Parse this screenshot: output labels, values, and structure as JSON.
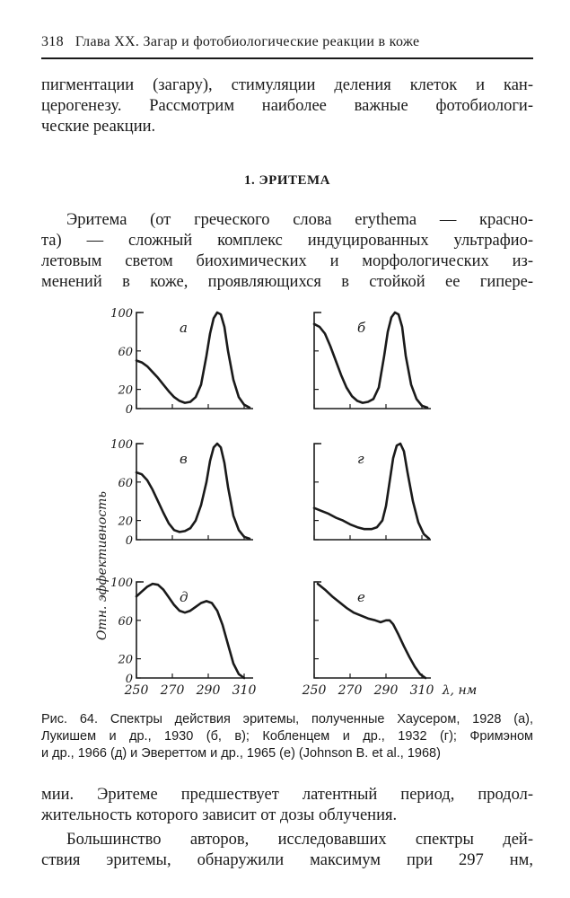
{
  "header": {
    "page_number": "318",
    "running_title": "Глава XX. Загар и фотобиологические реакции в коже"
  },
  "para1": [
    "пигментации (загару), стимуляции деления клеток и кан-",
    "церогенезу. Рассмотрим наиболее важные фотобиологи-",
    "ческие реакции."
  ],
  "section_title": "1. ЭРИТЕМА",
  "para2": [
    "Эритема (от греческого слова erythema — красно-",
    "та) — сложный комплекс индуцированных ультрафио-",
    "летовым светом биохимических и морфологических из-",
    "менений в коже, проявляющихся в стойкой ее гипере-"
  ],
  "chart_data": {
    "type": "line",
    "ylabel": "Отн. эффективность",
    "xlabel": "λ, нм",
    "x_ticks": [
      "250",
      "270",
      "290",
      "310"
    ],
    "y_ticks": [
      "0",
      "20",
      "60",
      "100"
    ],
    "xlim": [
      250,
      315
    ],
    "ylim": [
      0,
      100
    ],
    "panels": [
      {
        "label": "а",
        "x": [
          250,
          253,
          256,
          259,
          262,
          265,
          268,
          271,
          274,
          277,
          280,
          283,
          286,
          289,
          291,
          293,
          295,
          297,
          299,
          301,
          304,
          307,
          310,
          313
        ],
        "y": [
          50,
          48,
          44,
          38,
          32,
          25,
          18,
          12,
          8,
          6,
          7,
          12,
          25,
          55,
          78,
          94,
          100,
          98,
          85,
          60,
          30,
          12,
          4,
          1
        ]
      },
      {
        "label": "б",
        "x": [
          250,
          253,
          256,
          259,
          262,
          265,
          268,
          271,
          274,
          277,
          280,
          283,
          286,
          289,
          291,
          293,
          295,
          297,
          299,
          301,
          304,
          307,
          310,
          313
        ],
        "y": [
          88,
          85,
          78,
          65,
          50,
          35,
          22,
          13,
          8,
          6,
          7,
          10,
          22,
          55,
          80,
          95,
          100,
          98,
          85,
          55,
          25,
          10,
          3,
          1
        ]
      },
      {
        "label": "в",
        "x": [
          250,
          253,
          256,
          259,
          262,
          265,
          268,
          271,
          274,
          277,
          280,
          283,
          286,
          289,
          291,
          293,
          295,
          297,
          299,
          301,
          304,
          307,
          310,
          313
        ],
        "y": [
          70,
          68,
          62,
          52,
          40,
          28,
          17,
          10,
          8,
          9,
          12,
          20,
          36,
          60,
          82,
          96,
          100,
          96,
          80,
          55,
          25,
          10,
          3,
          1
        ]
      },
      {
        "label": "г",
        "x": [
          250,
          254,
          258,
          262,
          266,
          270,
          274,
          278,
          282,
          285,
          288,
          290,
          292,
          294,
          296,
          298,
          300,
          302,
          305,
          308,
          311,
          314
        ],
        "y": [
          33,
          30,
          27,
          23,
          20,
          16,
          13,
          11,
          11,
          13,
          20,
          35,
          60,
          85,
          98,
          100,
          92,
          70,
          40,
          18,
          6,
          1
        ]
      },
      {
        "label": "д",
        "x": [
          250,
          253,
          256,
          259,
          262,
          265,
          268,
          271,
          274,
          277,
          280,
          283,
          286,
          289,
          292,
          295,
          298,
          301,
          304,
          307,
          310
        ],
        "y": [
          85,
          90,
          95,
          98,
          97,
          92,
          84,
          76,
          70,
          68,
          70,
          74,
          78,
          80,
          78,
          70,
          55,
          35,
          15,
          4,
          0
        ]
      },
      {
        "label": "е",
        "x": [
          252,
          256,
          260,
          264,
          268,
          272,
          276,
          280,
          284,
          287,
          290,
          292,
          294,
          297,
          300,
          303,
          306,
          309,
          312
        ],
        "y": [
          98,
          92,
          85,
          79,
          73,
          68,
          65,
          62,
          60,
          58,
          60,
          60,
          56,
          45,
          33,
          22,
          12,
          4,
          0
        ]
      }
    ]
  },
  "caption": [
    "Рис. 64. Спектры действия эритемы, полученные Хаусером, 1928 (а),",
    "Лукишем и др., 1930 (б, в); Кобленцем и др., 1932 (г); Фримэном",
    "и др., 1966 (д) и Эвереттом и др., 1965 (е) (Johnson B. et al., 1968)"
  ],
  "para3": [
    "мии. Эритеме предшествует латентный период, продол-",
    "жительность которого зависит от дозы облучения."
  ],
  "para4": [
    "Большинство авторов, исследовавших спектры дей-",
    "ствия эритемы, обнаружили максимум при 297 нм,"
  ]
}
